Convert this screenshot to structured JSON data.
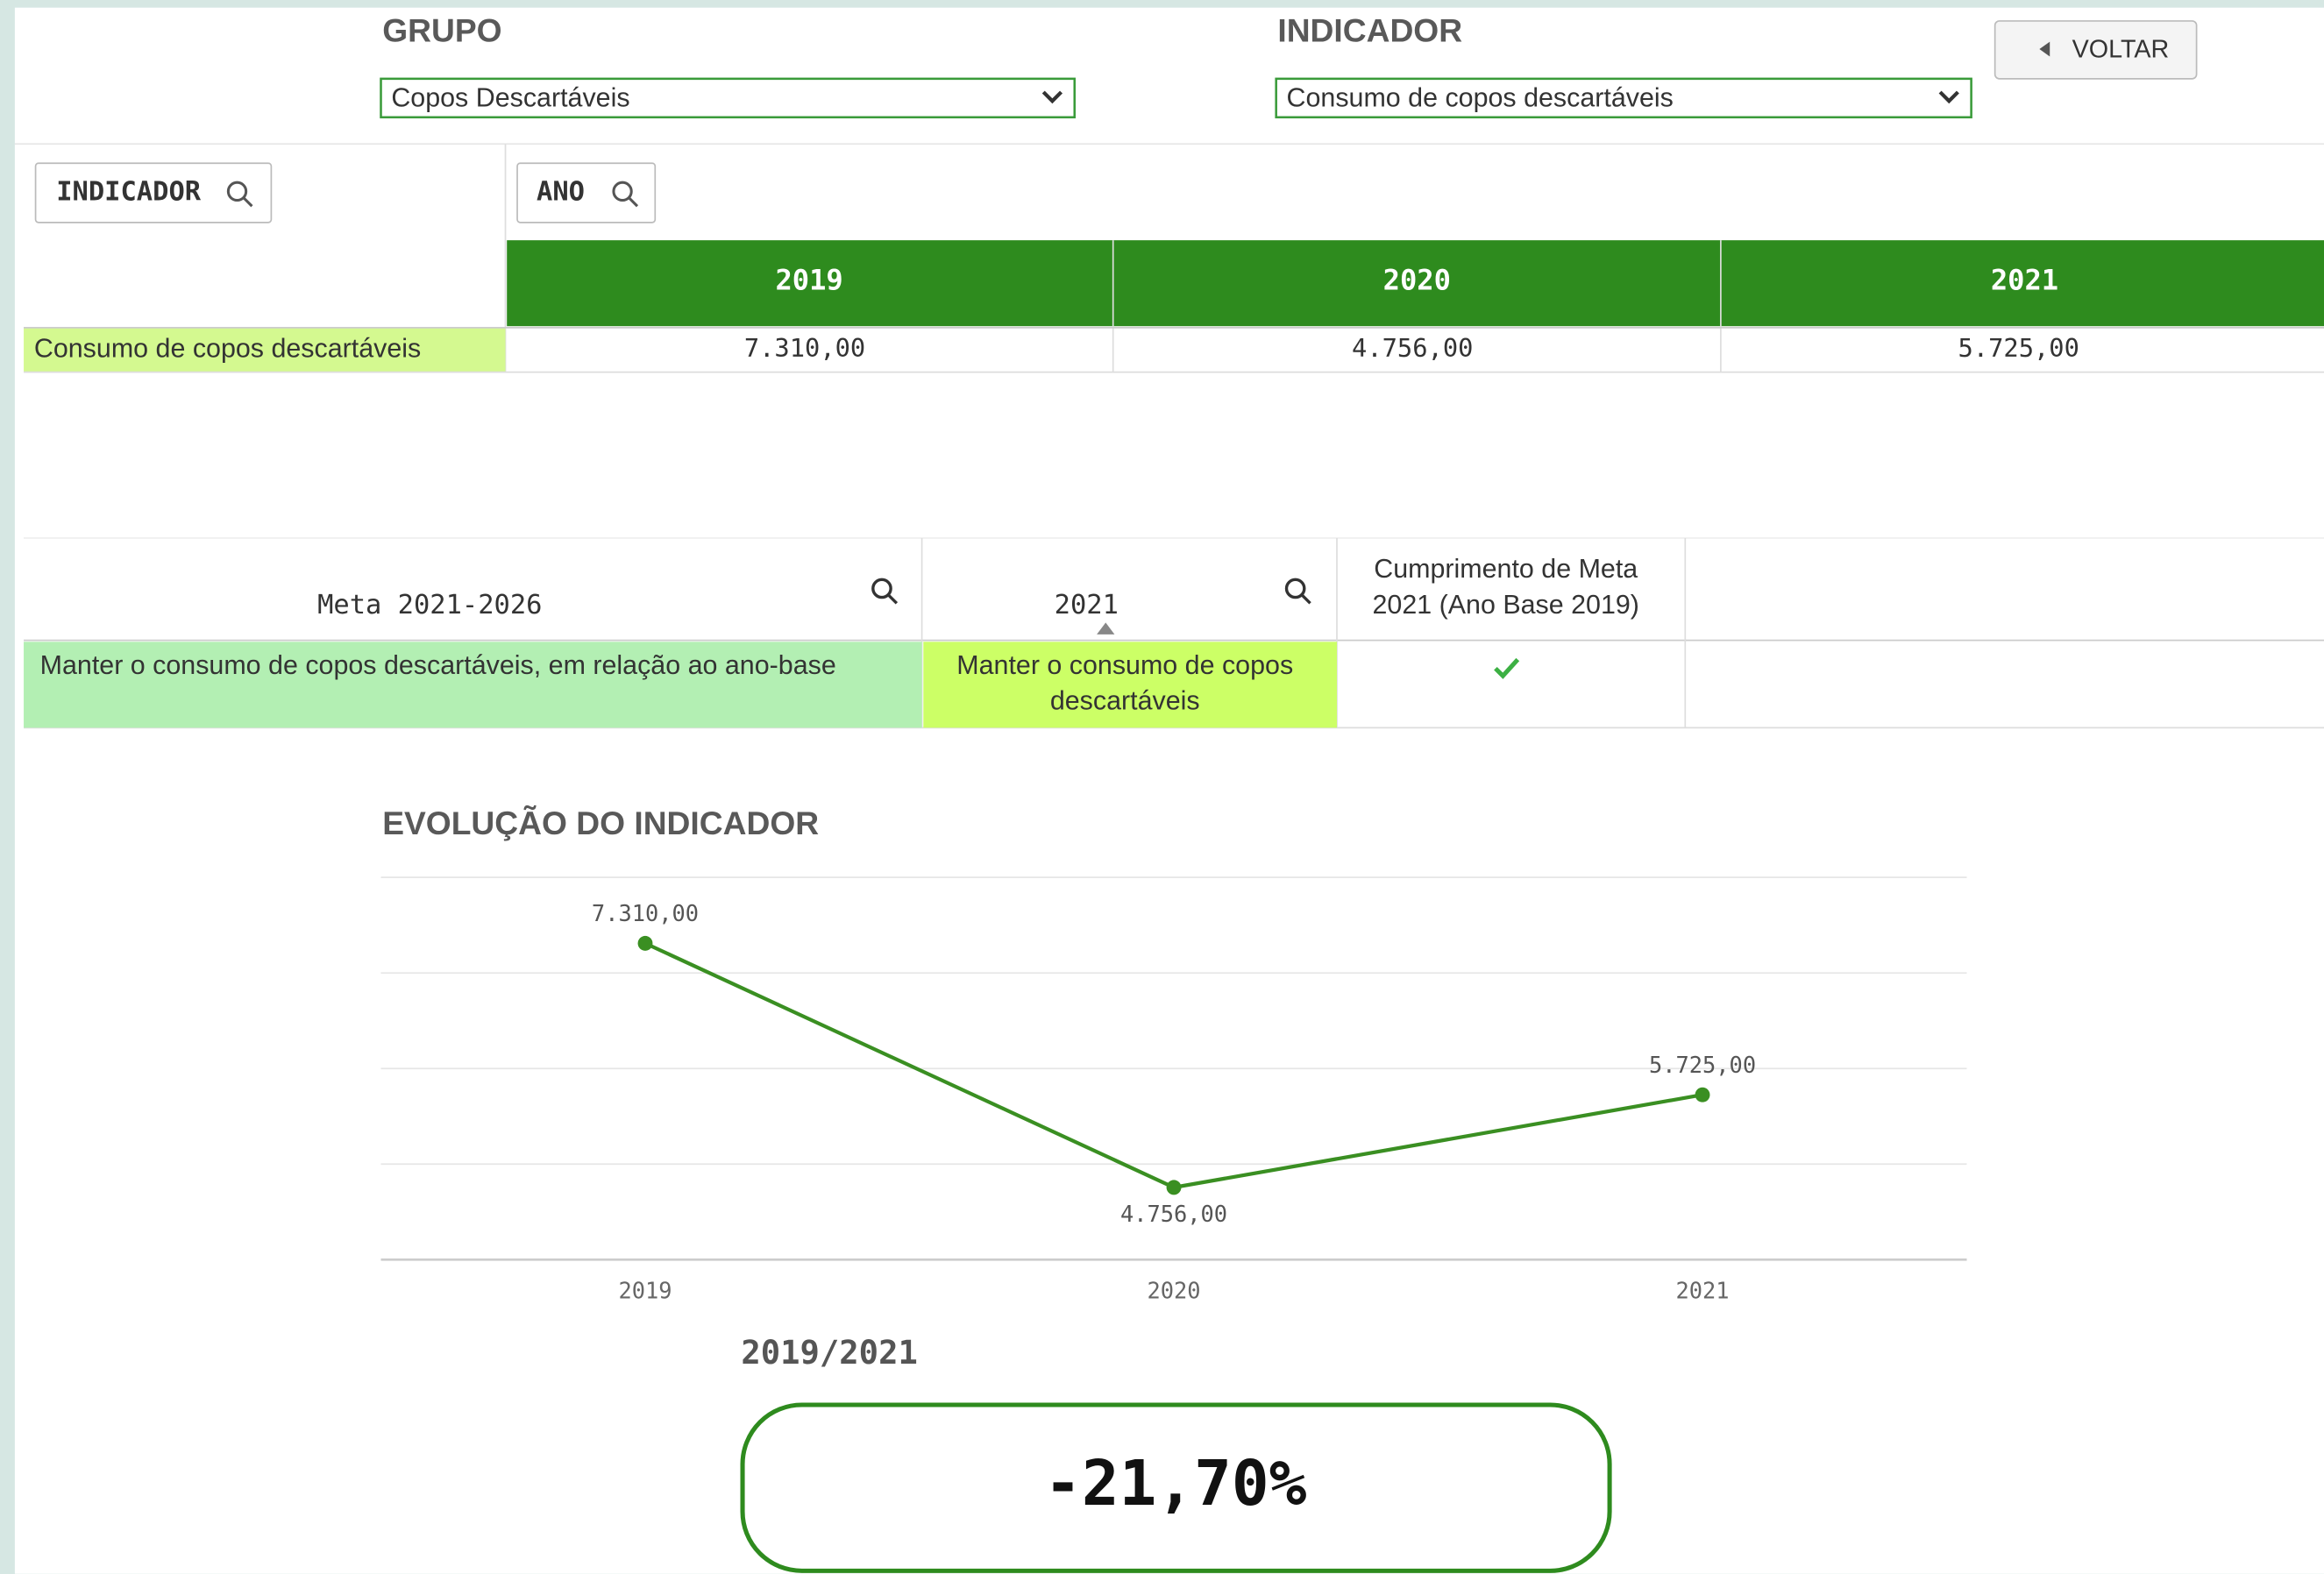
{
  "filters": {
    "grupo": {
      "label": "GRUPO",
      "value": "Copos Descartáveis"
    },
    "indicador": {
      "label": "INDICADOR",
      "value": "Consumo de copos descartáveis"
    },
    "back_button": "VOLTAR"
  },
  "table": {
    "filters": [
      "INDICADOR",
      "ANO"
    ],
    "columns": [
      "2019",
      "2020",
      "2021"
    ],
    "rows": [
      [
        "Consumo de copos descartáveis",
        "7.310,00",
        "4.756,00",
        "5.725,00"
      ]
    ]
  },
  "goals": {
    "columns": [
      "Meta 2021-2026",
      "2021",
      [
        "Cumprimento de Meta",
        "2021 (Ano Base 2019)"
      ]
    ],
    "rows": [
      [
        "Manter o consumo de copos descartáveis, em relação ao ano-base",
        [
          "Manter o consumo de copos",
          "descartáveis"
        ]
      ]
    ]
  },
  "chart_data": {
    "type": "line",
    "title": "EVOLUÇÃO DO INDICADOR",
    "categories": [
      "2019",
      "2020",
      "2021"
    ],
    "values": [
      7310,
      4756,
      5725
    ],
    "value_labels": [
      "7.310,00",
      "4.756,00",
      "5.725,00"
    ],
    "color": "#3a8f22",
    "ylim": [
      4000,
      8000
    ],
    "yticks": [
      4000,
      5000,
      6000,
      7000,
      8000
    ],
    "grid": true
  },
  "kpi": {
    "label": "2019/2021",
    "value": "-21,70%"
  }
}
